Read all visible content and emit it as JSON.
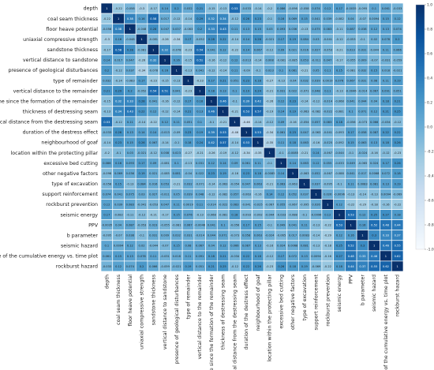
{
  "chart_data": {
    "type": "heatmap",
    "colormap": [
      "#f7fbff",
      "#deebf7",
      "#c6dbef",
      "#9ecae1",
      "#6baed6",
      "#4292c6",
      "#2171b5",
      "#08519c",
      "#08306b"
    ],
    "cell_border_color": "#ffffff",
    "value_range": [
      -1.0,
      1.0
    ],
    "colorbar_ticks": [
      "1.0",
      "0.8",
      "0.6",
      "0.4",
      "0.2",
      "0.0",
      "-0.2",
      "-0.4",
      "-0.6",
      "-0.8",
      "-1.0"
    ],
    "labels": [
      "depth",
      "coal seam thickness",
      "floor heave potential",
      "uniaxial compressive strength",
      "sandstone thickness",
      "vertical distance to sandstone",
      "presence of geological disturbances",
      "type of remainder",
      "vertical distance to the remainder",
      "time since the formation of the remainder",
      "thickness of destressing seam",
      "vertical distance from the destressing seam",
      "duration of the destress effect",
      "neighbourhood of goaf",
      "location within the protecting pillar",
      "excessive bed cutting",
      "other negative factors",
      "type of excavation",
      "support reinforcement",
      "rockburst prevention",
      "seismic energy",
      "PPV",
      "b parameter",
      "seismic hazard",
      "slope of the cumulative energy vs. time plot",
      "rockburst hazard"
    ],
    "matrix": [
      [
        1,
        -0.22,
        -0.058,
        -0.3,
        -0.17,
        0.14,
        0.2,
        0.032,
        0.21,
        -0.15,
        -0.13,
        0.53,
        -0.033,
        -0.14,
        -0.2,
        0.086,
        -0.098,
        -0.058,
        0.074,
        0.12,
        0.17,
        -0.0035,
        -0.095,
        0.1,
        0.061,
        -0.033
      ],
      [
        -0.22,
        1,
        0.38,
        0.16,
        0.58,
        0.017,
        -0.12,
        -0.14,
        0.29,
        0.32,
        0.34,
        -0.12,
        0.26,
        0.23,
        -0.1,
        0.16,
        0.069,
        0.15,
        0.041,
        0.039,
        -0.082,
        0.04,
        -0.07,
        0.0094,
        0.15,
        0.12
      ],
      [
        -0.058,
        0.38,
        1,
        -0.048,
        0.28,
        0.047,
        0.037,
        -0.083,
        0.2,
        0.33,
        0.43,
        0.11,
        0.13,
        0.15,
        0.03,
        0.093,
        0.036,
        -0.13,
        0.075,
        0.083,
        -0.11,
        0.087,
        0.038,
        0.12,
        0.13,
        0.074
      ],
      [
        -0.3,
        0.16,
        -0.048,
        1,
        -0.081,
        -0.26,
        -0.34,
        0.17,
        -0.052,
        0.28,
        0.22,
        -0.14,
        0.14,
        0.26,
        -0.021,
        0.17,
        0.19,
        0.084,
        0.03,
        -0.041,
        -0.12,
        -0.053,
        -0.1,
        0.02,
        0.078,
        0.2
      ],
      [
        -0.17,
        0.58,
        0.28,
        -0.081,
        1,
        0.32,
        -0.078,
        -0.23,
        0.54,
        0.041,
        0.12,
        -0.22,
        0.14,
        0.067,
        -0.12,
        0.09,
        0.021,
        0.016,
        0.027,
        -0.053,
        -0.21,
        0.023,
        0.031,
        -0.044,
        0.11,
        0.066
      ],
      [
        0.14,
        0.017,
        0.047,
        -0.26,
        0.32,
        1,
        0.16,
        -0.15,
        0.51,
        -0.16,
        -0.12,
        0.12,
        -0.013,
        -0.14,
        0.008,
        -0.081,
        -0.085,
        0.053,
        -0.011,
        0.047,
        -0.17,
        -0.055,
        0.009,
        -0.07,
        -0.031,
        -0.059
      ],
      [
        0.2,
        -0.12,
        0.037,
        -0.34,
        -0.078,
        0.16,
        1,
        -0.13,
        0.041,
        -0.12,
        -0.14,
        0.11,
        -0.09,
        -0.1,
        0.023,
        0.1,
        0.081,
        -0.21,
        0.05,
        0.11,
        0.15,
        -0.081,
        0.032,
        0.15,
        0.018,
        -0.021
      ],
      [
        0.032,
        -0.14,
        -0.083,
        0.17,
        -0.23,
        -0.15,
        -0.13,
        1,
        -0.23,
        0.17,
        0.21,
        0.051,
        0.23,
        0.18,
        -0.27,
        -0.13,
        -0.04,
        0.032,
        0.039,
        0.0019,
        0.076,
        0.067,
        0.031,
        0.08,
        0.11,
        0.19
      ],
      [
        0.21,
        0.29,
        0.2,
        -0.052,
        0.54,
        0.51,
        0.041,
        -0.23,
        1,
        0.18,
        0.13,
        0.1,
        0.19,
        0.24,
        -0.21,
        0.031,
        0.022,
        -0.071,
        0.048,
        0.11,
        -0.13,
        -0.0046,
        -0.014,
        0.067,
        0.091,
        0.051
      ],
      [
        -0.15,
        0.32,
        0.33,
        0.28,
        0.041,
        -0.16,
        -0.12,
        0.17,
        0.18,
        1,
        0.46,
        -0.1,
        0.39,
        0.42,
        -0.26,
        0.12,
        0.23,
        -0.14,
        -0.12,
        -0.014,
        -0.068,
        0.041,
        0.044,
        0.04,
        0.18,
        0.21
      ],
      [
        -0.13,
        0.34,
        0.43,
        0.22,
        0.12,
        -0.12,
        -0.14,
        0.21,
        0.13,
        0.46,
        1,
        -0.21,
        0.53,
        0.57,
        -0.19,
        0.14,
        0.19,
        -0.063,
        -0.082,
        -0.022,
        -0.081,
        0.1,
        0.071,
        0.12,
        0.21,
        0.25
      ],
      [
        0.53,
        -0.12,
        0.11,
        -0.14,
        -0.22,
        0.12,
        0.11,
        0.051,
        0.1,
        -0.1,
        -0.21,
        1,
        -0.46,
        -0.14,
        -0.12,
        0.09,
        -0.16,
        -0.054,
        0.057,
        0.083,
        0.18,
        -0.056,
        -0.073,
        0.066,
        -0.034,
        -0.12
      ],
      [
        -0.033,
        0.26,
        0.13,
        0.14,
        0.14,
        -0.013,
        -0.09,
        0.23,
        0.19,
        0.39,
        0.53,
        -0.46,
        1,
        0.53,
        -0.34,
        0.061,
        0.23,
        0.047,
        -0.063,
        -0.041,
        -0.093,
        0.17,
        0.058,
        0.087,
        0.22,
        0.22
      ],
      [
        -0.14,
        0.23,
        0.15,
        0.26,
        0.067,
        -0.14,
        -0.1,
        0.18,
        0.24,
        0.42,
        0.57,
        -0.14,
        0.53,
        1,
        -0.35,
        0.11,
        0.18,
        0.063,
        -0.16,
        -0.025,
        -0.092,
        0.15,
        0.063,
        0.13,
        0.18,
        0.26
      ],
      [
        -0.2,
        -0.1,
        0.03,
        -0.021,
        -0.12,
        0.008,
        0.023,
        -0.27,
        -0.21,
        -0.26,
        -0.19,
        -0.12,
        -0.34,
        -0.35,
        1,
        -0.1,
        -0.0085,
        -0.21,
        0.14,
        -0.067,
        -0.044,
        -0.1,
        -0.024,
        -0.16,
        -0.12,
        -0.23
      ],
      [
        0.086,
        0.16,
        0.093,
        0.17,
        0.09,
        -0.081,
        0.1,
        -0.13,
        0.031,
        0.12,
        0.14,
        0.09,
        0.061,
        0.11,
        -0.1,
        1,
        0.14,
        0.063,
        0.12,
        0.055,
        -0.033,
        0.049,
        -0.065,
        0.024,
        0.17,
        0.26
      ],
      [
        -0.098,
        0.069,
        0.036,
        0.19,
        0.021,
        -0.085,
        0.081,
        -0.04,
        0.022,
        0.23,
        0.19,
        -0.16,
        0.23,
        0.18,
        -0.0085,
        0.14,
        1,
        -0.063,
        0.052,
        -0.067,
        -0.088,
        0.041,
        0.017,
        0.0068,
        0.072,
        0.18
      ],
      [
        -0.058,
        0.15,
        -0.13,
        0.084,
        0.016,
        0.053,
        -0.21,
        0.032,
        -0.071,
        -0.14,
        -0.063,
        -0.054,
        0.047,
        0.063,
        -0.21,
        0.063,
        -0.063,
        1,
        0.037,
        -0.095,
        -0.1,
        0.11,
        0.0083,
        0.081,
        0.13,
        0.19
      ],
      [
        0.074,
        0.041,
        0.075,
        0.03,
        0.027,
        -0.011,
        0.05,
        0.039,
        0.048,
        -0.12,
        -0.082,
        0.057,
        -0.063,
        -0.16,
        0.14,
        0.12,
        0.052,
        0.037,
        1,
        0.026,
        -0.0096,
        -0.13,
        -0.14,
        -0.13,
        0.0094,
        -0.069
      ],
      [
        0.12,
        0.039,
        0.083,
        -0.041,
        -0.053,
        0.047,
        0.11,
        0.0019,
        0.11,
        -0.014,
        -0.022,
        0.083,
        -0.041,
        -0.025,
        -0.067,
        0.055,
        -0.067,
        -0.095,
        0.026,
        1,
        0.12,
        -0.22,
        -0.29,
        -0.18,
        -0.16,
        -0.22
      ],
      [
        0.17,
        -0.082,
        -0.11,
        -0.12,
        -0.21,
        -0.17,
        0.15,
        0.076,
        -0.13,
        -0.068,
        -0.081,
        0.18,
        -0.093,
        -0.092,
        -0.044,
        -0.033,
        -0.088,
        -0.1,
        -0.0096,
        0.12,
        1,
        0.53,
        0.12,
        0.25,
        0.27,
        0.18
      ],
      [
        -0.0035,
        0.04,
        0.087,
        -0.053,
        0.023,
        -0.055,
        -0.081,
        0.067,
        -0.0046,
        0.041,
        0.1,
        -0.056,
        0.17,
        0.15,
        -0.1,
        0.049,
        0.041,
        0.11,
        -0.13,
        -0.22,
        0.53,
        1,
        0.16,
        0.52,
        0.48,
        0.44
      ],
      [
        -0.095,
        -0.07,
        0.038,
        -0.1,
        0.031,
        0.009,
        0.032,
        0.031,
        -0.014,
        0.044,
        0.071,
        -0.073,
        0.058,
        0.063,
        -0.024,
        -0.065,
        0.017,
        0.0083,
        -0.14,
        -0.29,
        0.12,
        0.16,
        1,
        0.3,
        0.33,
        0.37
      ],
      [
        0.1,
        0.0094,
        0.12,
        0.02,
        -0.044,
        -0.07,
        0.15,
        0.08,
        0.067,
        0.04,
        0.12,
        0.066,
        0.087,
        0.13,
        -0.16,
        0.024,
        0.0068,
        0.081,
        -0.13,
        -0.18,
        0.25,
        0.52,
        0.3,
        1,
        0.46,
        0.55
      ],
      [
        0.061,
        0.15,
        0.13,
        0.078,
        0.11,
        -0.031,
        0.018,
        0.11,
        0.091,
        0.18,
        0.21,
        -0.034,
        0.22,
        0.18,
        -0.12,
        0.17,
        0.072,
        0.13,
        0.0094,
        -0.16,
        0.27,
        0.48,
        0.33,
        0.46,
        1,
        0.62
      ],
      [
        -0.033,
        0.12,
        0.074,
        0.2,
        0.066,
        -0.059,
        -0.021,
        0.19,
        0.051,
        0.21,
        0.25,
        -0.12,
        0.22,
        0.26,
        -0.23,
        0.26,
        0.18,
        0.19,
        -0.069,
        -0.22,
        0.18,
        0.44,
        0.37,
        0.55,
        0.62,
        1
      ]
    ]
  }
}
